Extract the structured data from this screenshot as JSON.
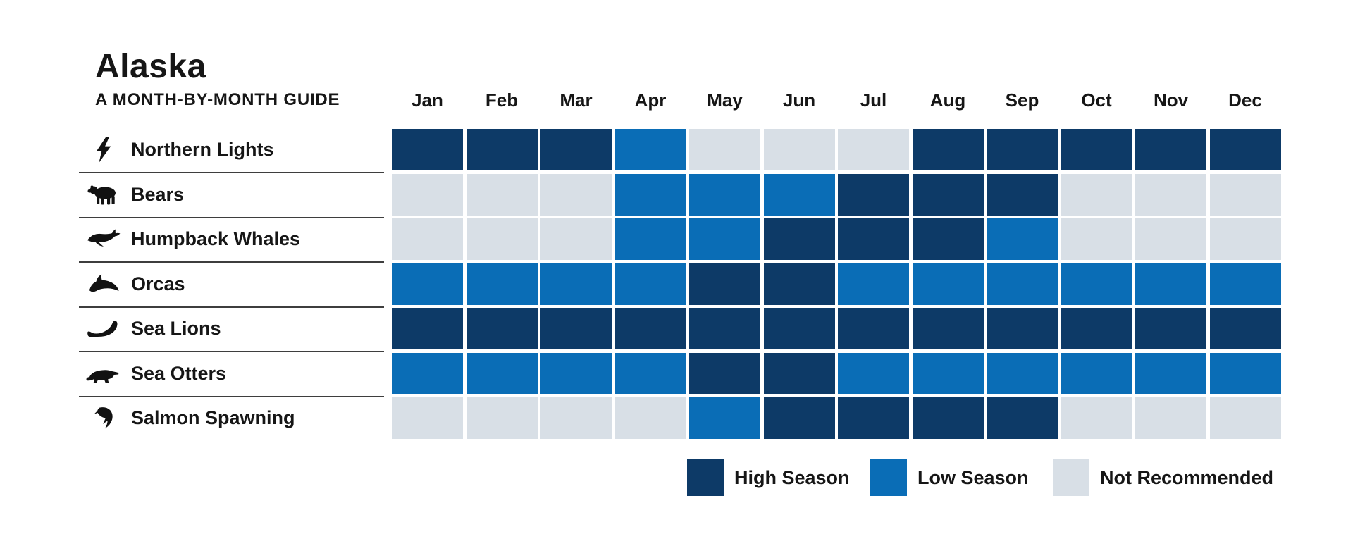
{
  "title": "Alaska",
  "subtitle": "A MONTH-BY-MONTH GUIDE",
  "colors": {
    "high": "#0d3a67",
    "low": "#0a6db6",
    "none": "#d8dfe6"
  },
  "legend": [
    {
      "key": "high",
      "label": "High Season"
    },
    {
      "key": "low",
      "label": "Low Season"
    },
    {
      "key": "none",
      "label": "Not Recommended"
    }
  ],
  "chart_data": {
    "type": "heatmap",
    "title": "Alaska",
    "subtitle": "A MONTH-BY-MONTH GUIDE",
    "columns": [
      "Jan",
      "Feb",
      "Mar",
      "Apr",
      "May",
      "Jun",
      "Jul",
      "Aug",
      "Sep",
      "Oct",
      "Nov",
      "Dec"
    ],
    "value_legend": {
      "high": "High Season",
      "low": "Low Season",
      "none": "Not Recommended"
    },
    "rows": [
      {
        "label": "Northern Lights",
        "icon": "lightning-icon",
        "values": [
          "high",
          "high",
          "high",
          "low",
          "none",
          "none",
          "none",
          "high",
          "high",
          "high",
          "high",
          "high"
        ]
      },
      {
        "label": "Bears",
        "icon": "bear-icon",
        "values": [
          "none",
          "none",
          "none",
          "low",
          "low",
          "low",
          "high",
          "high",
          "high",
          "none",
          "none",
          "none"
        ]
      },
      {
        "label": "Humpback Whales",
        "icon": "whale-icon",
        "values": [
          "none",
          "none",
          "none",
          "low",
          "low",
          "high",
          "high",
          "high",
          "low",
          "none",
          "none",
          "none"
        ]
      },
      {
        "label": "Orcas",
        "icon": "orca-icon",
        "values": [
          "low",
          "low",
          "low",
          "low",
          "high",
          "high",
          "low",
          "low",
          "low",
          "low",
          "low",
          "low"
        ]
      },
      {
        "label": "Sea Lions",
        "icon": "sea-lion-icon",
        "values": [
          "high",
          "high",
          "high",
          "high",
          "high",
          "high",
          "high",
          "high",
          "high",
          "high",
          "high",
          "high"
        ]
      },
      {
        "label": "Sea Otters",
        "icon": "otter-icon",
        "values": [
          "low",
          "low",
          "low",
          "low",
          "high",
          "high",
          "low",
          "low",
          "low",
          "low",
          "low",
          "low"
        ]
      },
      {
        "label": "Salmon Spawning",
        "icon": "salmon-icon",
        "values": [
          "none",
          "none",
          "none",
          "none",
          "low",
          "high",
          "high",
          "high",
          "high",
          "none",
          "none",
          "none"
        ]
      }
    ]
  }
}
